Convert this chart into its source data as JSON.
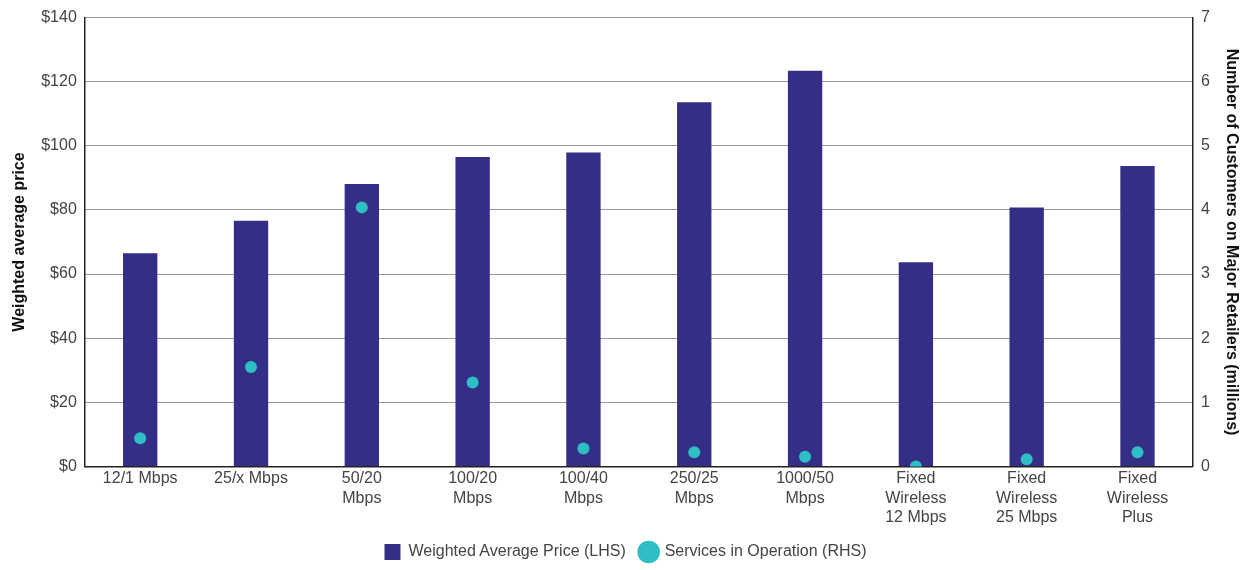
{
  "chart_data": {
    "type": "bar",
    "ylabel": "Weighted average price",
    "y2label": "Number of Customers on Major Retailers (millions)",
    "categories": [
      "12/1 Mbps",
      "25/x Mbps",
      "50/20\nMbps",
      "100/20\nMbps",
      "100/40\nMbps",
      "250/25\nMbps",
      "1000/50\nMbps",
      "Fixed\nWireless\n12 Mbps",
      "Fixed\nWireless\n25 Mbps",
      "Fixed\nWireless\nPlus"
    ],
    "series": [
      {
        "name": "Weighted Average Price (LHS)",
        "color": "#352e87",
        "values": [
          66.5,
          76.6,
          88.1,
          96.5,
          97.9,
          113.6,
          123.4,
          63.7,
          80.8,
          93.7
        ]
      },
      {
        "name": "Services in Operation (RHS)",
        "type": "scatter",
        "axis": "y2",
        "marker": "circle",
        "color": "#2ebfc4",
        "x": [
          "12/1 Mbps",
          "25/x Mbps",
          "50/20\nMbps",
          "100/20\nMbps",
          "100/40\nMbps",
          "250/25\nMbps",
          "1000/50\nMbps",
          "Fixed\nWireless\n12 Mbps",
          "Fixed\nWireless\n25 Mbps",
          "Fixed\nWireless\nPlus"
        ],
        "values": [
          0.44,
          1.55,
          4.04,
          1.31,
          0.28,
          0.22,
          0.15,
          0.0,
          0.11,
          0.22
        ]
      }
    ],
    "ylim": [
      0,
      140
    ],
    "yticks": [
      {
        "value": 0,
        "label": "$0"
      },
      {
        "value": 20,
        "label": "$20"
      },
      {
        "value": 40,
        "label": "$40"
      },
      {
        "value": 60,
        "label": "$60"
      },
      {
        "value": 80,
        "label": "$80"
      },
      {
        "value": 100,
        "label": "$100"
      },
      {
        "value": 120,
        "label": "$120"
      },
      {
        "value": 140,
        "label": "$140"
      }
    ],
    "y2lim": [
      0,
      7
    ],
    "y2ticks": [
      0,
      1,
      2,
      3,
      4,
      5,
      6,
      7
    ],
    "grid": "y",
    "legend": "bottom"
  }
}
